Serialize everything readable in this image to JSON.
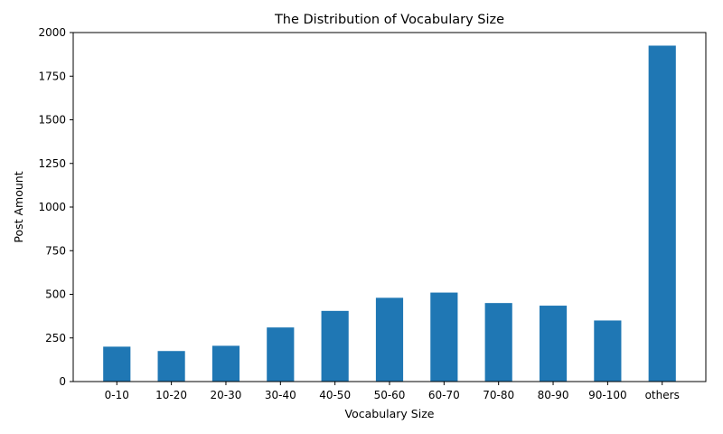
{
  "chart_data": {
    "type": "bar",
    "title": "The Distribution of Vocabulary Size",
    "xlabel": "Vocabulary Size",
    "ylabel": "Post Amount",
    "categories": [
      "0-10",
      "10-20",
      "20-30",
      "30-40",
      "40-50",
      "50-60",
      "60-70",
      "70-80",
      "80-90",
      "90-100",
      "others"
    ],
    "values": [
      200,
      175,
      205,
      310,
      405,
      480,
      510,
      450,
      435,
      350,
      1925
    ],
    "ylim": [
      0,
      2000
    ],
    "yticks": [
      0,
      250,
      500,
      750,
      1000,
      1250,
      1500,
      1750,
      2000
    ],
    "bar_color": "#1f77b4",
    "grid": false,
    "legend": "none"
  }
}
